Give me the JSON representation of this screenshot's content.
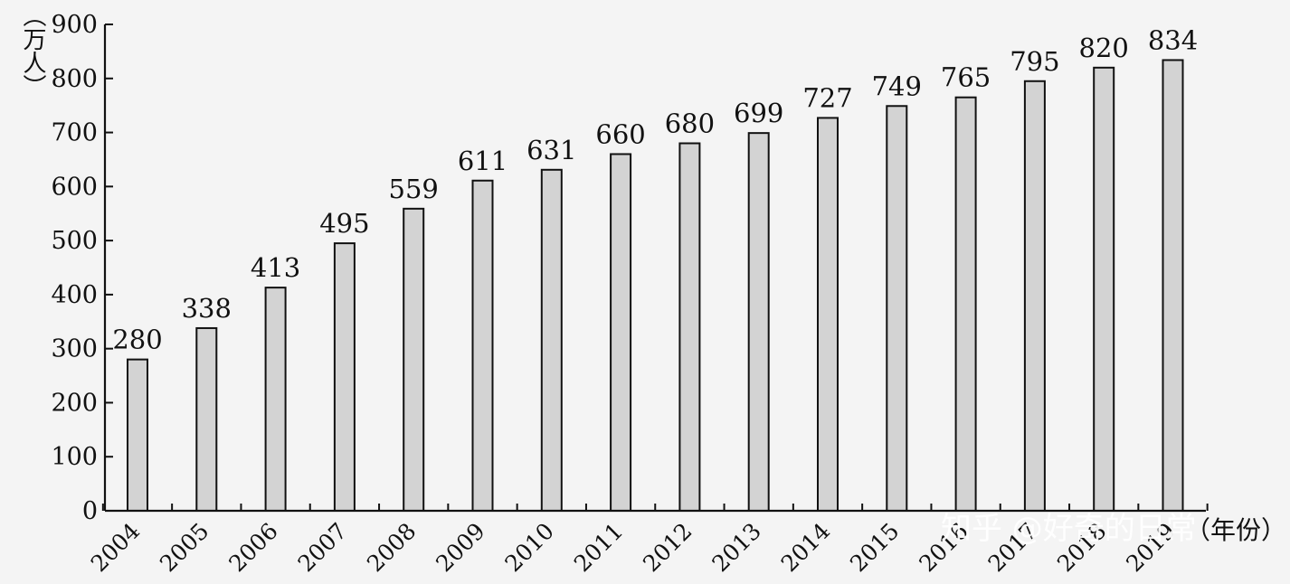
{
  "chart_data": {
    "type": "bar",
    "categories": [
      "2004",
      "2005",
      "2006",
      "2007",
      "2008",
      "2009",
      "2010",
      "2011",
      "2012",
      "2013",
      "2014",
      "2015",
      "2016",
      "2017",
      "2018",
      "2019"
    ],
    "values": [
      280,
      338,
      413,
      495,
      559,
      611,
      631,
      660,
      680,
      699,
      727,
      749,
      765,
      795,
      820,
      834
    ],
    "ylabel": "（万人）",
    "xlabel": "（年份）",
    "ylim": [
      0,
      900
    ],
    "yticks": [
      0,
      100,
      200,
      300,
      400,
      500,
      600,
      700,
      800,
      900
    ],
    "grid": false,
    "data_labels": true,
    "colors": {
      "bar_fill": "#d3d3d3",
      "bar_stroke": "#111111",
      "background": "#f4f4f4"
    }
  },
  "watermark": {
    "text": "知乎 @好奇的日常"
  }
}
